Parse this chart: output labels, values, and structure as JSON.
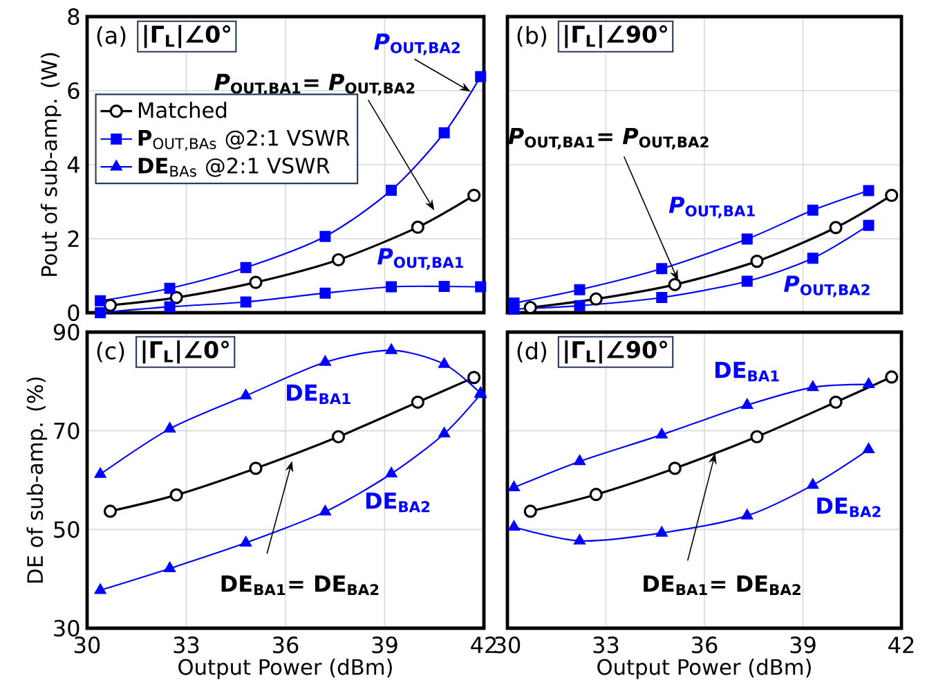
{
  "chart_data": [
    {
      "type": "line",
      "title": "(a)",
      "subtitle": "|Γ$_{L}$|∠0°",
      "ylabel": "Pout of sub-amp. (W)",
      "xlim": [
        30,
        42
      ],
      "xticks": [
        30,
        33,
        36,
        39,
        42
      ],
      "ylim": [
        0,
        8
      ],
      "yticks": [
        0,
        2,
        4,
        6,
        8
      ],
      "tick_labels": "y",
      "grid": true,
      "legend": "top left",
      "series": [
        {
          "name": "Matched",
          "color": "#000000",
          "marker": "circle",
          "x": [
            30.7,
            32.7,
            35.1,
            37.6,
            40.0,
            41.7
          ],
          "values": [
            0.2,
            0.41,
            0.82,
            1.43,
            2.31,
            3.17
          ]
        },
        {
          "name": "**P**$_{OUT,BAs}$ @2:1 VSWR",
          "color": "#0000ff",
          "marker": "square",
          "x": [
            30.4,
            32.5,
            34.8,
            37.2,
            39.2,
            40.8,
            41.9
          ],
          "values": [
            0.32,
            0.66,
            1.22,
            2.06,
            3.31,
            4.86,
            6.38
          ]
        },
        {
          "color": "#0000ff",
          "marker": "square",
          "x": [
            30.4,
            32.5,
            34.8,
            37.2,
            39.2,
            40.8,
            41.9
          ],
          "values": [
            0,
            0.16,
            0.29,
            0.53,
            0.7,
            0.71,
            0.7
          ]
        },
        {
          "name": "**DE**$_{BAs}$ @2:1 VSWR",
          "color": "#0000ff",
          "marker": "triangle"
        }
      ],
      "annotations": [
        {
          "text": "*P*$_{OUT,BA1}$= *P*$_{OUT,BA2}$",
          "x": 40.5,
          "y": 2.76
        },
        {
          "text": "*P*$_{OUT,BA2}$",
          "x": 41.6,
          "y": 5.97
        },
        {
          "text": "*P*$_{OUT,BA1}$",
          "x": 40.8,
          "y": 0.71
        }
      ]
    },
    {
      "type": "line",
      "title": "(b)",
      "subtitle": "|Γ$_{L}$|∠90°",
      "xlim": [
        30,
        42
      ],
      "xticks": [
        30,
        33,
        36,
        39,
        42
      ],
      "ylim": [
        0,
        8
      ],
      "yticks": [
        0,
        2,
        4,
        6,
        8
      ],
      "tick_labels": false,
      "grid": true,
      "series": [
        {
          "color": "#000000",
          "marker": "circle",
          "x": [
            30.7,
            32.7,
            35.1,
            37.6,
            40.0,
            41.7
          ],
          "values": [
            0.14,
            0.37,
            0.76,
            1.39,
            2.3,
            3.17
          ]
        },
        {
          "color": "#0000ff",
          "marker": "square",
          "x": [
            30.2,
            32.2,
            34.7,
            37.3,
            39.3,
            41.0
          ],
          "values": [
            0.26,
            0.62,
            1.19,
            1.99,
            2.77,
            3.3
          ]
        },
        {
          "color": "#0000ff",
          "marker": "square",
          "x": [
            30.2,
            32.2,
            34.7,
            37.3,
            39.3,
            41.0
          ],
          "values": [
            0.1,
            0.19,
            0.41,
            0.85,
            1.47,
            2.36
          ]
        }
      ],
      "annotations": [
        {
          "text": "*P*$_{OUT,BA1}$= *P*$_{OUT,BA2}$",
          "x": 35.2,
          "y": 0.86
        },
        {
          "text": "*P*$_{OUT,BA1}$",
          "x": 37.3,
          "y": 1.99
        },
        {
          "text": "*P*$_{OUT,BA2}$",
          "x": 39.3,
          "y": 1.47
        }
      ]
    },
    {
      "type": "line",
      "title": "(c)",
      "subtitle": "|Γ$_{L}$|∠0°",
      "xlabel": "Output Power (dBm)",
      "ylabel": "DE of sub-amp. (%)",
      "xlim": [
        30,
        42
      ],
      "xticks": [
        30,
        33,
        36,
        39,
        42
      ],
      "ylim": [
        30,
        90
      ],
      "yticks": [
        30,
        50,
        70,
        90
      ],
      "grid": true,
      "series": [
        {
          "color": "#000000",
          "marker": "circle",
          "x": [
            30.7,
            32.7,
            35.1,
            37.6,
            40.0,
            41.7
          ],
          "values": [
            53.7,
            57.0,
            62.4,
            68.8,
            75.8,
            80.8
          ]
        },
        {
          "color": "#0000ff",
          "marker": "triangle",
          "x": [
            30.4,
            32.5,
            34.8,
            37.2,
            39.2,
            40.8,
            41.9
          ],
          "values": [
            61.2,
            70.4,
            77.1,
            83.9,
            86.3,
            83.5,
            77.6
          ]
        },
        {
          "color": "#0000ff",
          "marker": "triangle",
          "x": [
            30.4,
            32.5,
            34.8,
            37.2,
            39.2,
            40.8,
            41.9
          ],
          "values": [
            37.7,
            42.1,
            47.3,
            53.6,
            61.3,
            69.4,
            77.4
          ]
        }
      ],
      "annotations": [
        {
          "text": "DE$_{BA1}$= DE$_{BA2}$",
          "x": 36.2,
          "y": 63.9
        },
        {
          "text": "DE$_{BA1}$",
          "x": 37.2,
          "y": 83.9
        },
        {
          "text": "DE$_{BA2}$",
          "x": 39.2,
          "y": 61.3
        }
      ]
    },
    {
      "type": "line",
      "title": "(d)",
      "subtitle": "|Γ$_{L}$|∠90°",
      "xlabel": "Output Power (dBm)",
      "xlim": [
        30,
        42
      ],
      "xticks": [
        30,
        33,
        36,
        39,
        42
      ],
      "ylim": [
        30,
        90
      ],
      "yticks": [
        30,
        50,
        70,
        90
      ],
      "tick_labels": "x",
      "grid": true,
      "series": [
        {
          "color": "#000000",
          "marker": "circle",
          "x": [
            30.7,
            32.7,
            35.1,
            37.6,
            40.0,
            41.7
          ],
          "values": [
            53.7,
            57.1,
            62.4,
            68.8,
            75.8,
            80.9
          ]
        },
        {
          "color": "#0000ff",
          "marker": "triangle",
          "x": [
            30.2,
            32.2,
            34.7,
            37.3,
            39.3,
            41.0
          ],
          "values": [
            58.5,
            63.8,
            69.2,
            75.2,
            78.8,
            79.4
          ]
        },
        {
          "color": "#0000ff",
          "marker": "triangle",
          "x": [
            30.2,
            32.2,
            34.7,
            37.3,
            39.3,
            41.0
          ],
          "values": [
            50.5,
            47.7,
            49.3,
            52.8,
            59.0,
            66.2
          ]
        }
      ],
      "annotations": [
        {
          "text": "DE$_{BA1}$= DE$_{BA2}$",
          "x": 36.33,
          "y": 65.5
        },
        {
          "text": "DE$_{BA1}$",
          "x": 37.3,
          "y": 75.2
        },
        {
          "text": "DE$_{BA2}$",
          "x": 39.3,
          "y": 59.0
        }
      ]
    }
  ]
}
